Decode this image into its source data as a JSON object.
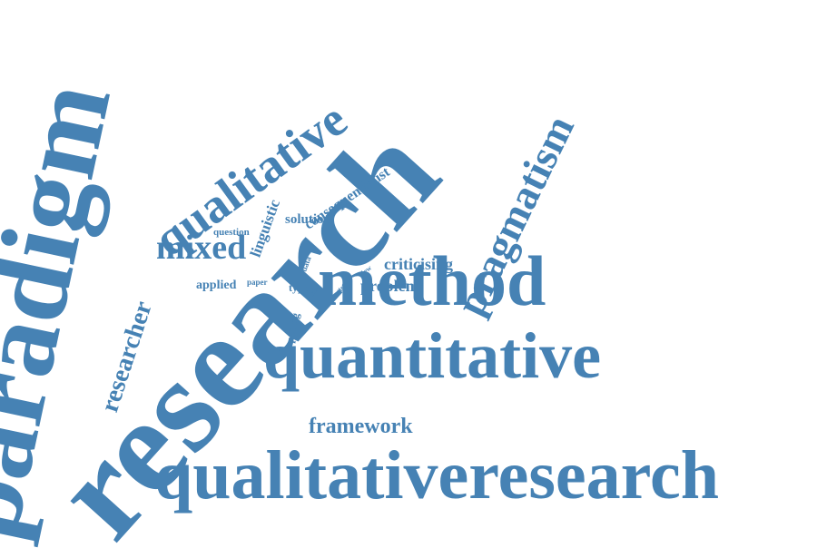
{
  "colors": {
    "word": "#4682b4",
    "background": "#ffffff"
  },
  "words": [
    {
      "id": "paradigm",
      "text": "paradigm"
    },
    {
      "id": "research-main",
      "text": "research"
    },
    {
      "id": "qualitativeresearch",
      "text": "qualitativeresearch"
    },
    {
      "id": "quantitative",
      "text": "quantitative"
    },
    {
      "id": "method",
      "text": "method"
    },
    {
      "id": "qualitative",
      "text": "qualitative"
    },
    {
      "id": "pragmatism",
      "text": "pragmatism"
    },
    {
      "id": "mixed",
      "text": "mixed"
    },
    {
      "id": "researcher",
      "text": "researcher"
    },
    {
      "id": "framework",
      "text": "framework"
    },
    {
      "id": "consequentialist",
      "text": "consequentialist"
    },
    {
      "id": "linguistic",
      "text": "linguistic"
    },
    {
      "id": "criticising",
      "text": "criticising"
    },
    {
      "id": "problem",
      "text": "problem"
    },
    {
      "id": "solution",
      "text": "solution"
    },
    {
      "id": "applied",
      "text": "applied"
    },
    {
      "id": "question",
      "text": "question"
    },
    {
      "id": "posing",
      "text": "posing"
    },
    {
      "id": "type",
      "text": "type"
    },
    {
      "id": "paper",
      "text": "paper"
    },
    {
      "id": "data",
      "text": "data"
    },
    {
      "id": "view",
      "text": "view"
    },
    {
      "id": "arise",
      "text": "arise"
    },
    {
      "id": "effect",
      "text": "effect"
    }
  ]
}
